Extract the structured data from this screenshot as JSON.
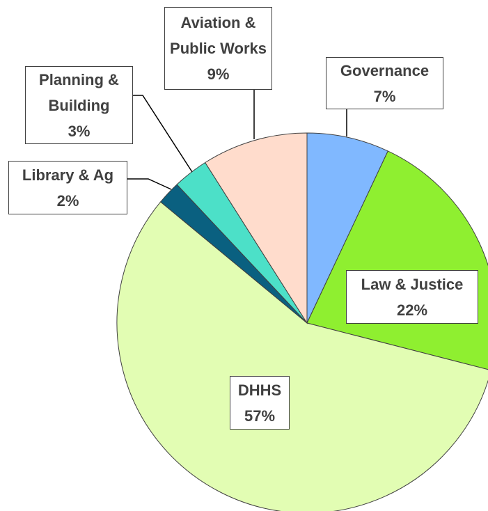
{
  "chart_data": {
    "type": "pie",
    "categories": [
      "Governance",
      "Law & Justice",
      "DHHS",
      "Library & Ag",
      "Planning & Building",
      "Aviation & Public Works"
    ],
    "values": [
      7,
      22,
      57,
      2,
      3,
      9
    ],
    "value_labels": [
      "7%",
      "22%",
      "57%",
      "2%",
      "3%",
      "9%"
    ],
    "colors": [
      "#80b8ff",
      "#8fef30",
      "#e2fdb3",
      "#0a6080",
      "#4ce0c8",
      "#ffdccc"
    ]
  }
}
